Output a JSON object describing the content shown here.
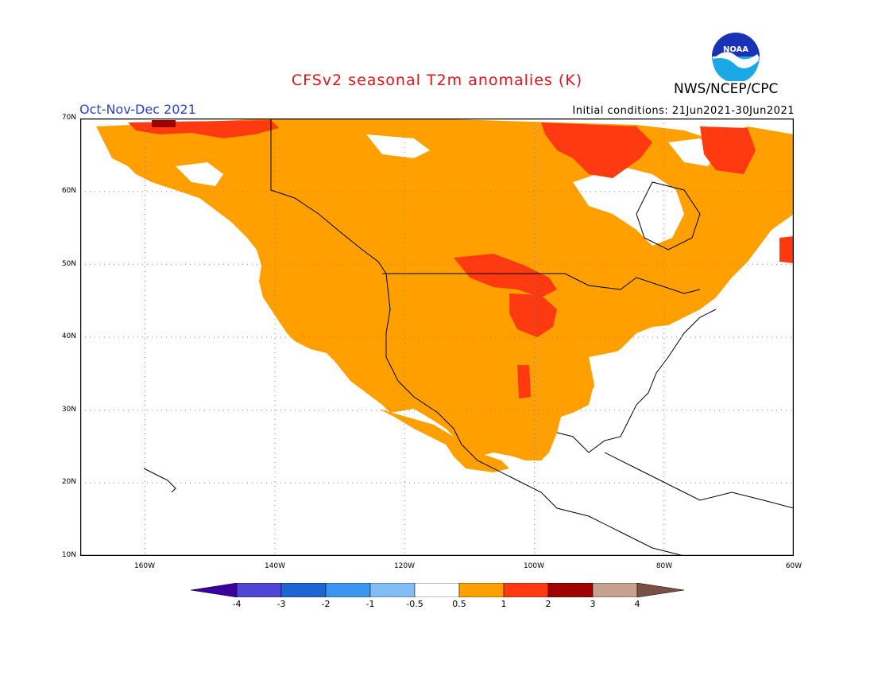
{
  "header": {
    "title": "CFSv2 seasonal T2m anomalies (K)",
    "organization": "NWS/NCEP/CPC",
    "logo_text": "NOAA",
    "season": "Oct-Nov-Dec 2021",
    "initial_conditions": "Initial conditions: 21Jun2021-30Jun2021"
  },
  "map": {
    "region": "North America",
    "lat_labels": [
      "70N",
      "60N",
      "50N",
      "40N",
      "30N",
      "20N",
      "10N"
    ],
    "lon_labels": [
      "160W",
      "140W",
      "120W",
      "100W",
      "80W",
      "60W"
    ],
    "colors": {
      "land_outline": "#000000",
      "warm_05_1": "#ff9f00",
      "warm_1_2": "#ff3a10",
      "warm_2_3": "#a00000"
    }
  },
  "colorbar": {
    "labels": [
      "-4",
      "-3",
      "-2",
      "-1",
      "-0.5",
      "0.5",
      "1",
      "2",
      "3",
      "4"
    ],
    "colors": [
      "#3a00a0",
      "#5046d4",
      "#1e64d2",
      "#3c96f0",
      "#82bcf4",
      "#ffffff",
      "#ff9f00",
      "#ff3a10",
      "#a00000",
      "#c8a090",
      "#7a5046"
    ]
  }
}
